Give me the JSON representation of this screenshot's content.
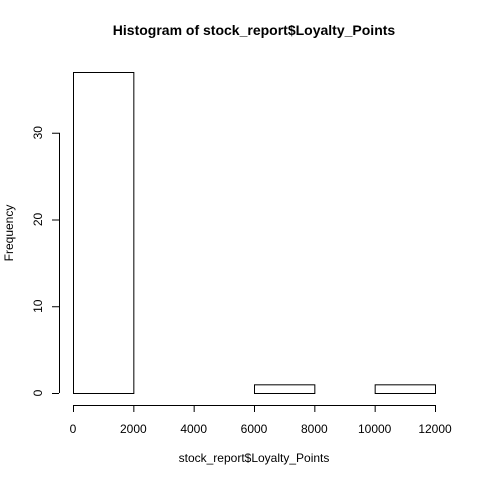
{
  "chart_data": {
    "type": "bar",
    "title": "Histogram of stock_report$Loyalty_Points",
    "xlabel": "stock_report$Loyalty_Points",
    "ylabel": "Frequency",
    "bins": [
      {
        "start": 0,
        "end": 2000,
        "count": 37
      },
      {
        "start": 2000,
        "end": 4000,
        "count": 0
      },
      {
        "start": 4000,
        "end": 6000,
        "count": 0
      },
      {
        "start": 6000,
        "end": 8000,
        "count": 1
      },
      {
        "start": 8000,
        "end": 10000,
        "count": 0
      },
      {
        "start": 10000,
        "end": 12000,
        "count": 1
      }
    ],
    "xlim": [
      0,
      12000
    ],
    "ylim": [
      0,
      37
    ],
    "x_ticks": [
      0,
      2000,
      4000,
      6000,
      8000,
      10000,
      12000
    ],
    "y_ticks": [
      0,
      10,
      20,
      30
    ],
    "grid": false,
    "bar_fill": "#ffffff",
    "bar_stroke": "#000000"
  }
}
